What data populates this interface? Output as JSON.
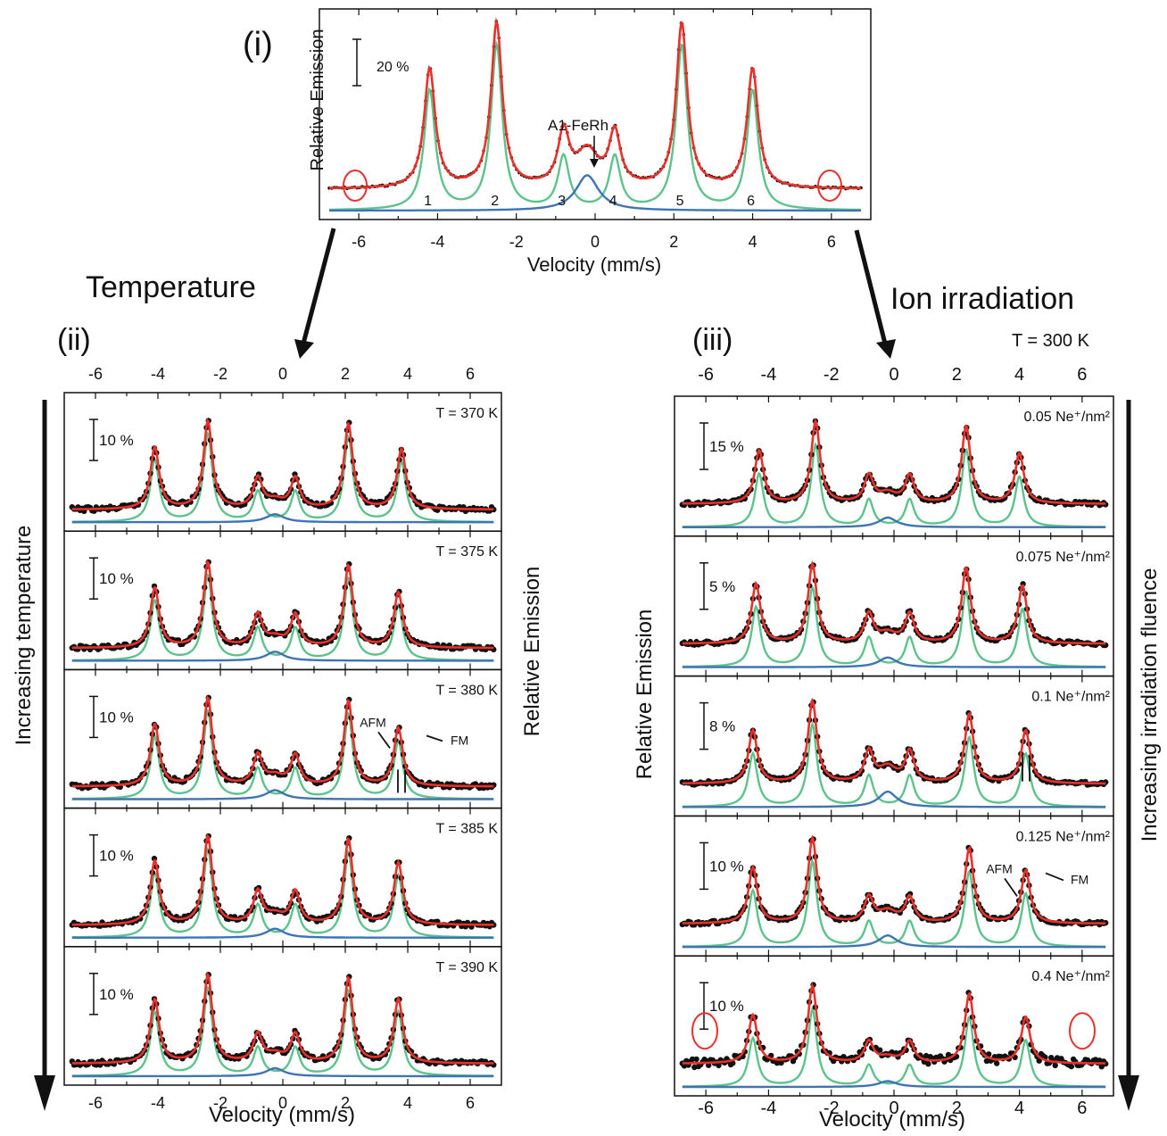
{
  "chart_data": {
    "type": "line",
    "colors": {
      "data": "#111111",
      "fit": "#e8312a",
      "sextet": "#5cc38b",
      "singlet": "#3f74b4",
      "marker": "#e8312a"
    },
    "arrows": {
      "temperature_label": "Temperature",
      "ion_label": "Ion irradiation"
    },
    "panels": [
      {
        "id": "i",
        "label": "(i)",
        "xlabel": "Velocity (mm/s)",
        "ylabel": "Relative Emission",
        "xlim": [
          -7,
          7
        ],
        "xticks": [
          "-6",
          "-4",
          "-2",
          "0",
          "2",
          "4",
          "6"
        ],
        "scale_bar": "20 %",
        "annotation": "A1-FeRh",
        "peak_labels": [
          "1",
          "2",
          "3",
          "4",
          "5",
          "6"
        ],
        "peaks": {
          "positions": [
            -4.2,
            -2.5,
            -0.8,
            0.5,
            2.2,
            4.0
          ],
          "heights": [
            0.61,
            0.84,
            0.27,
            0.27,
            0.84,
            0.61
          ]
        },
        "singlet": {
          "center": -0.1,
          "height": 0.09
        }
      },
      {
        "id": "ii",
        "label": "(ii)",
        "xlabel": "Velocity (mm/s)",
        "ylabel": "Relative Emission",
        "side_label": "Increasing temperature",
        "xlim": [
          -7,
          7
        ],
        "xticks": [
          "-6",
          "-4",
          "-2",
          "0",
          "2",
          "4",
          "6"
        ],
        "subpanels": [
          {
            "label": "T = 370 K",
            "scale_bar": "10 %",
            "peaks": {
              "positions": [
                -4.1,
                -2.4,
                -0.8,
                0.4,
                2.1,
                3.8
              ],
              "heights": [
                0.62,
                0.88,
                0.3,
                0.3,
                0.85,
                0.6
              ]
            },
            "singlet_height": 0.08
          },
          {
            "label": "T = 375 K",
            "scale_bar": "10 %",
            "peaks": {
              "positions": [
                -4.1,
                -2.4,
                -0.8,
                0.4,
                2.1,
                3.7
              ],
              "heights": [
                0.6,
                0.85,
                0.32,
                0.32,
                0.82,
                0.55
              ]
            },
            "singlet_height": 0.09
          },
          {
            "label": "T = 380 K",
            "scale_bar": "10 %",
            "peaks": {
              "positions": [
                -4.1,
                -2.4,
                -0.8,
                0.4,
                2.1,
                3.7
              ],
              "heights": [
                0.62,
                0.88,
                0.3,
                0.3,
                0.85,
                0.58
              ]
            },
            "singlet_height": 0.09,
            "annotations": [
              "AFM",
              "FM"
            ]
          },
          {
            "label": "T = 385 K",
            "scale_bar": "10 %",
            "peaks": {
              "positions": [
                -4.1,
                -2.4,
                -0.8,
                0.4,
                2.1,
                3.7
              ],
              "heights": [
                0.64,
                0.88,
                0.32,
                0.32,
                0.85,
                0.62
              ]
            },
            "singlet_height": 0.09
          },
          {
            "label": "T = 390 K",
            "scale_bar": "10 %",
            "peaks": {
              "positions": [
                -4.1,
                -2.4,
                -0.8,
                0.4,
                2.1,
                3.7
              ],
              "heights": [
                0.64,
                0.88,
                0.28,
                0.28,
                0.85,
                0.64
              ]
            },
            "singlet_height": 0.08
          }
        ]
      },
      {
        "id": "iii",
        "label": "(iii)",
        "xlabel": "Velocity (mm/s)",
        "ylabel": "Relative Emission",
        "side_label": "Increasing irradiation fluence",
        "condition": "T = 300 K",
        "xlim": [
          -7,
          7
        ],
        "xticks": [
          "-6",
          "-4",
          "-2",
          "0",
          "2",
          "4",
          "6"
        ],
        "subpanels": [
          {
            "label": "0.05 Ne⁺/nm²",
            "scale_bar": "15 %",
            "peaks": {
              "positions": [
                -4.3,
                -2.5,
                -0.8,
                0.5,
                2.3,
                4.0
              ],
              "heights": [
                0.55,
                0.85,
                0.28,
                0.28,
                0.8,
                0.52
              ]
            },
            "singlet_height": 0.1
          },
          {
            "label": "0.075 Ne⁺/nm²",
            "scale_bar": "5 %",
            "peaks": {
              "positions": [
                -4.4,
                -2.6,
                -0.8,
                0.5,
                2.3,
                4.1
              ],
              "heights": [
                0.62,
                0.82,
                0.3,
                0.3,
                0.78,
                0.6
              ]
            },
            "singlet_height": 0.1
          },
          {
            "label": "0.1 Ne⁺/nm²",
            "scale_bar": "8 %",
            "peaks": {
              "positions": [
                -4.5,
                -2.6,
                -0.8,
                0.5,
                2.4,
                4.2
              ],
              "heights": [
                0.55,
                0.85,
                0.32,
                0.32,
                0.72,
                0.55
              ]
            },
            "singlet_height": 0.16
          },
          {
            "label": "0.125 Ne⁺/nm²",
            "scale_bar": "10 %",
            "peaks": {
              "positions": [
                -4.5,
                -2.6,
                -0.8,
                0.5,
                2.4,
                4.2
              ],
              "heights": [
                0.58,
                0.88,
                0.26,
                0.26,
                0.78,
                0.55
              ]
            },
            "singlet_height": 0.12,
            "annotations": [
              "AFM",
              "FM"
            ]
          },
          {
            "label": "0.4 Ne⁺/nm²",
            "scale_bar": "10 %",
            "peaks": {
              "positions": [
                -4.5,
                -2.6,
                -0.8,
                0.5,
                2.4,
                4.2
              ],
              "heights": [
                0.5,
                0.8,
                0.22,
                0.22,
                0.72,
                0.48
              ]
            },
            "singlet_height": 0.06
          }
        ]
      }
    ]
  }
}
